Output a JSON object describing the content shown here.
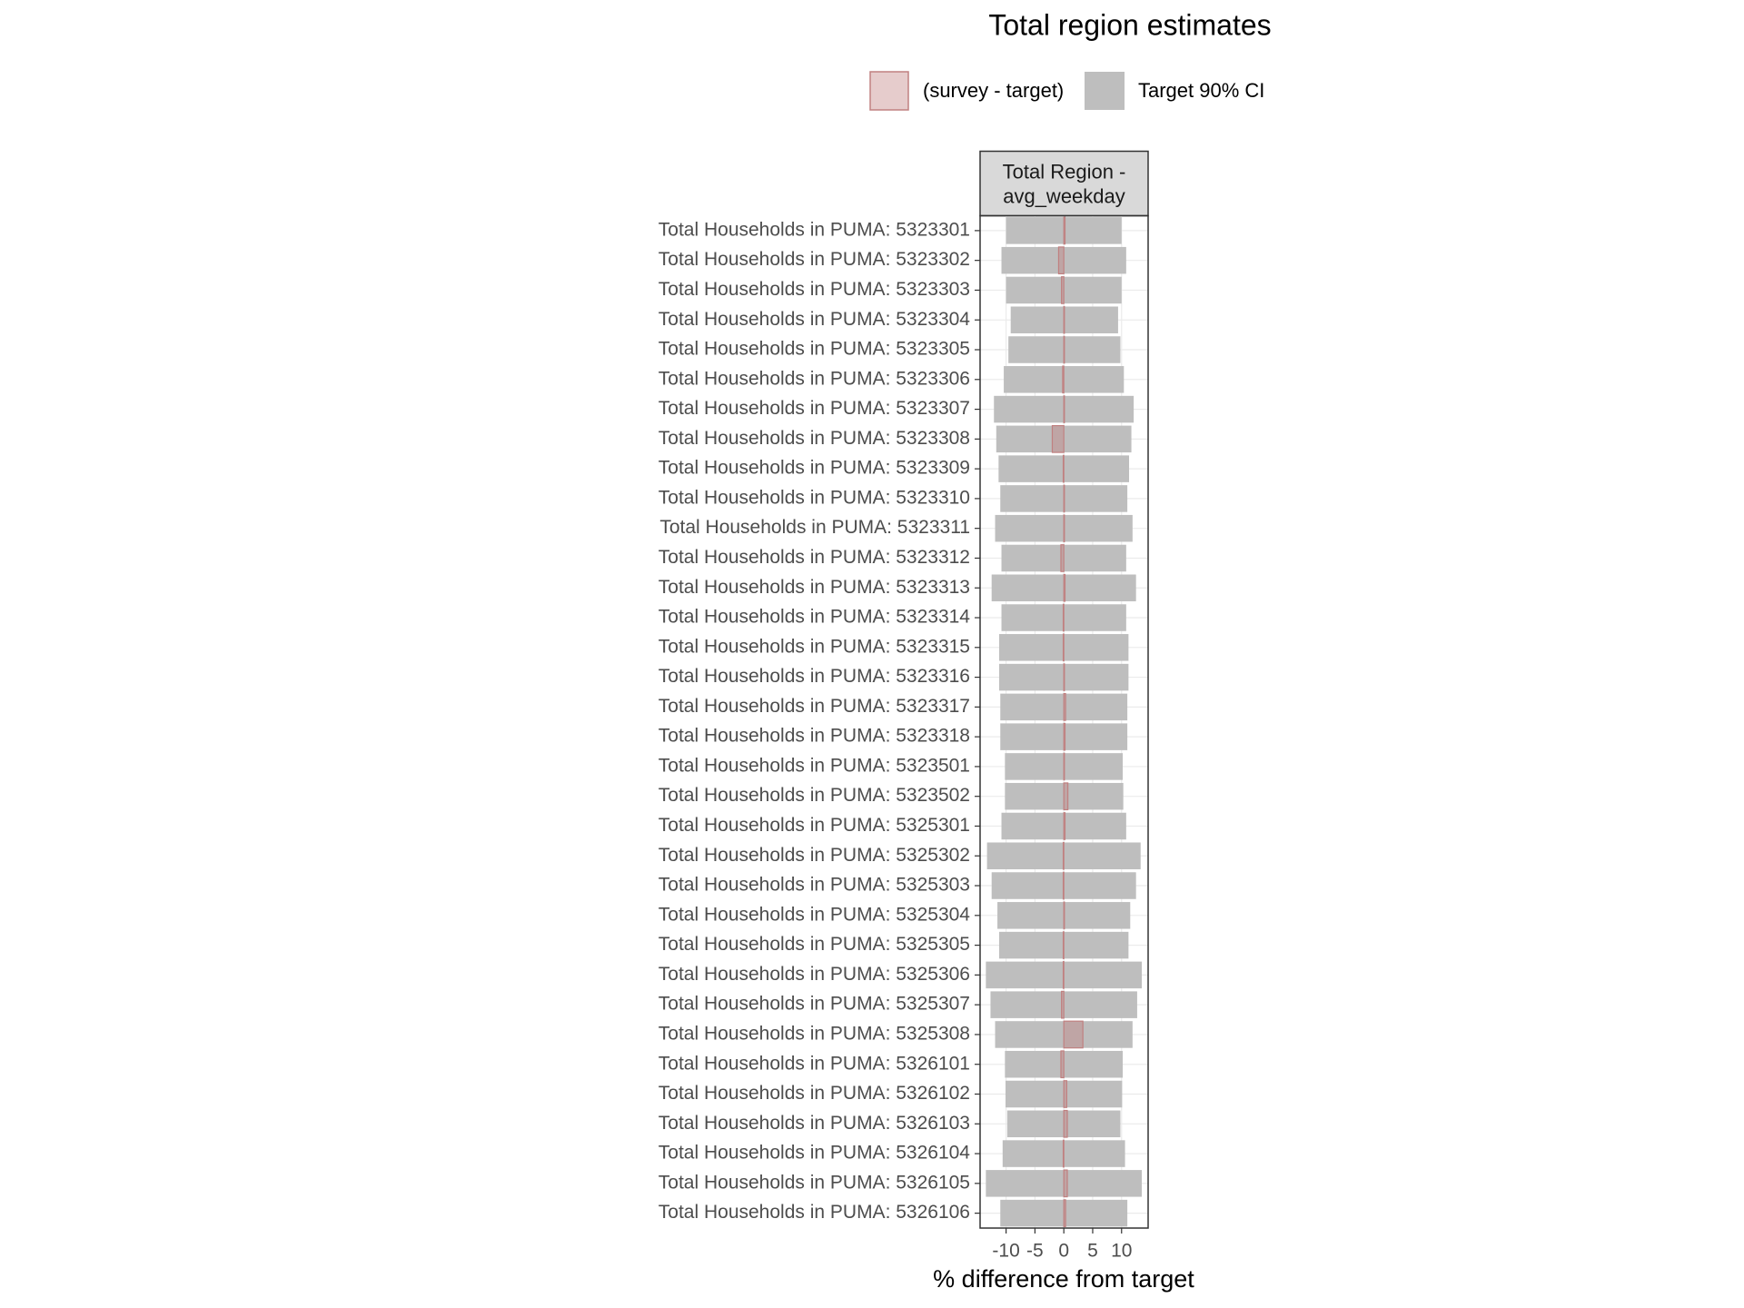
{
  "chart_data": {
    "type": "bar",
    "title": "Total region estimates",
    "facet_label": [
      "Total Region -",
      "avg_weekday"
    ],
    "xlabel": "% difference from target",
    "categories": [
      "Total Households in PUMA: 5323301",
      "Total Households in PUMA: 5323302",
      "Total Households in PUMA: 5323303",
      "Total Households in PUMA: 5323304",
      "Total Households in PUMA: 5323305",
      "Total Households in PUMA: 5323306",
      "Total Households in PUMA: 5323307",
      "Total Households in PUMA: 5323308",
      "Total Households in PUMA: 5323309",
      "Total Households in PUMA: 5323310",
      "Total Households in PUMA: 5323311",
      "Total Households in PUMA: 5323312",
      "Total Households in PUMA: 5323313",
      "Total Households in PUMA: 5323314",
      "Total Households in PUMA: 5323315",
      "Total Households in PUMA: 5323316",
      "Total Households in PUMA: 5323317",
      "Total Households in PUMA: 5323318",
      "Total Households in PUMA: 5323501",
      "Total Households in PUMA: 5323502",
      "Total Households in PUMA: 5325301",
      "Total Households in PUMA: 5325302",
      "Total Households in PUMA: 5325303",
      "Total Households in PUMA: 5325304",
      "Total Households in PUMA: 5325305",
      "Total Households in PUMA: 5325306",
      "Total Households in PUMA: 5325307",
      "Total Households in PUMA: 5325308",
      "Total Households in PUMA: 5326101",
      "Total Households in PUMA: 5326102",
      "Total Households in PUMA: 5326103",
      "Total Households in PUMA: 5326104",
      "Total Households in PUMA: 5326105",
      "Total Households in PUMA: 5326106"
    ],
    "series": [
      {
        "name": "(survey - target)",
        "color": "#c08080",
        "values": [
          0.2,
          -0.9,
          -0.4,
          0.1,
          0.1,
          -0.2,
          0.1,
          -2,
          -0.1,
          0.1,
          0.1,
          -0.5,
          0.2,
          -0.1,
          -0.1,
          0.1,
          0.3,
          0.2,
          0.1,
          0.7,
          0.2,
          -0.1,
          -0.1,
          0.1,
          -0.1,
          -0.1,
          -0.4,
          3.3,
          -0.5,
          0.5,
          0.6,
          -0.1,
          0.6,
          0.3
        ]
      },
      {
        "name": "Target 90% CI",
        "color": "#bebebe",
        "low": [
          -10,
          -10.8,
          -10,
          -9.2,
          -9.6,
          -10.4,
          -12.1,
          -11.7,
          -11.3,
          -11,
          -11.9,
          -10.8,
          -12.5,
          -10.8,
          -11.2,
          -11.2,
          -11,
          -11,
          -10.2,
          -10.2,
          -10.8,
          -13.3,
          -12.5,
          -11.5,
          -11.2,
          -13.5,
          -12.7,
          -11.9,
          -10.2,
          -10.1,
          -9.8,
          -10.6,
          -13.5,
          -11
        ],
        "high": [
          10,
          10.8,
          10,
          9.4,
          9.8,
          10.4,
          12.1,
          11.7,
          11.3,
          11,
          11.9,
          10.8,
          12.5,
          10.8,
          11.2,
          11.2,
          11,
          11,
          10.2,
          10.3,
          10.8,
          13.3,
          12.5,
          11.5,
          11.2,
          13.5,
          12.7,
          11.9,
          10.2,
          10.1,
          9.8,
          10.6,
          13.5,
          11
        ]
      }
    ],
    "xlim": [
      -14.5,
      14.6
    ],
    "xticks": [
      -10,
      -5,
      0,
      5,
      10
    ],
    "grid": true,
    "legend": "top"
  }
}
